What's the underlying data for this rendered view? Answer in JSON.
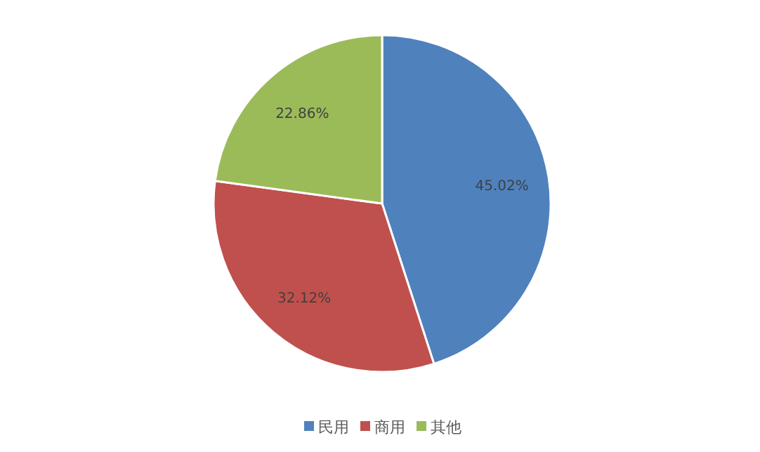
{
  "chart_data": {
    "type": "pie",
    "categories": [
      "民用",
      "商用",
      "其他"
    ],
    "values": [
      45.02,
      32.12,
      22.86
    ],
    "colors": [
      "#4f81bd",
      "#c0504d",
      "#9bbb59"
    ],
    "value_labels": [
      "45.02%",
      "32.12%",
      "22.86%"
    ],
    "legend": "bottom"
  }
}
